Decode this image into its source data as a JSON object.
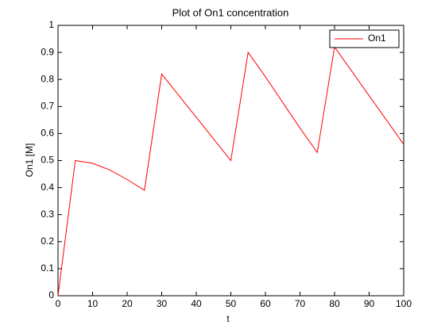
{
  "chart_data": {
    "type": "line",
    "title": "Plot of On1 concentration",
    "x_label": "t",
    "y_label": "On1 [M]",
    "x": [
      0,
      5,
      10,
      15,
      20,
      25,
      30,
      35,
      40,
      45,
      50,
      55,
      60,
      65,
      70,
      75,
      80,
      85,
      90,
      95,
      100
    ],
    "series": [
      {
        "name": "On1",
        "color": "#ff0000",
        "values": [
          0,
          0.5,
          0.49,
          0.465,
          0.43,
          0.39,
          0.82,
          0.74,
          0.66,
          0.58,
          0.5,
          0.9,
          0.81,
          0.715,
          0.62,
          0.53,
          0.92,
          0.83,
          0.74,
          0.65,
          0.56
        ]
      }
    ],
    "xlim": [
      0,
      100
    ],
    "xticks": [
      0,
      10,
      20,
      30,
      40,
      50,
      60,
      70,
      80,
      90,
      100
    ],
    "ylim": [
      0,
      1
    ],
    "yticks": [
      0,
      0.1,
      0.2,
      0.3,
      0.4,
      0.5,
      0.6,
      0.7,
      0.8,
      0.9,
      1
    ],
    "grid": false,
    "legend": "upper-right"
  }
}
